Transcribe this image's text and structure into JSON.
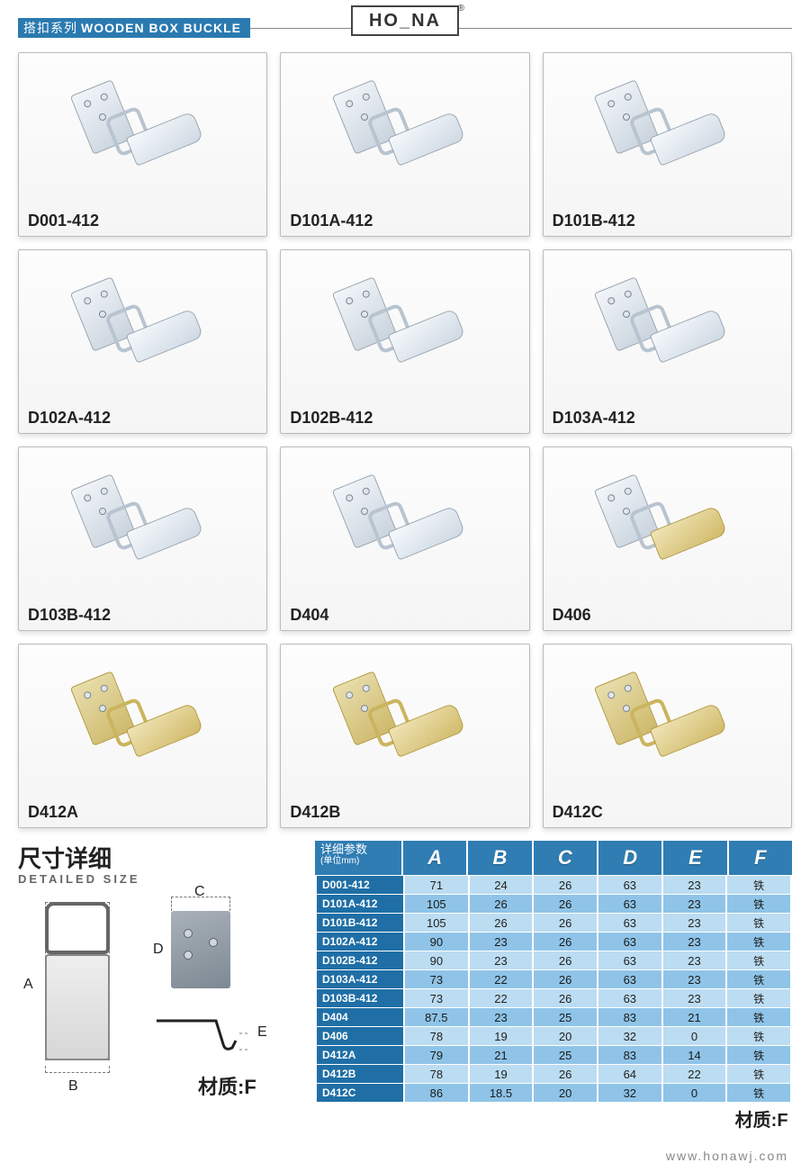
{
  "header": {
    "series_zh": "搭扣系列",
    "series_en": "WOODEN BOX BUCKLE",
    "brand": "HO_NA"
  },
  "products": [
    {
      "code": "D001-412",
      "tint": "steel"
    },
    {
      "code": "D101A-412",
      "tint": "steel"
    },
    {
      "code": "D101B-412",
      "tint": "steel"
    },
    {
      "code": "D102A-412",
      "tint": "steel"
    },
    {
      "code": "D102B-412",
      "tint": "steel"
    },
    {
      "code": "D103A-412",
      "tint": "steel"
    },
    {
      "code": "D103B-412",
      "tint": "steel"
    },
    {
      "code": "D404",
      "tint": "steel"
    },
    {
      "code": "D406",
      "tint": "mix"
    },
    {
      "code": "D412A",
      "tint": "yellow"
    },
    {
      "code": "D412B",
      "tint": "yellow"
    },
    {
      "code": "D412C",
      "tint": "yellow"
    }
  ],
  "size_section": {
    "title_zh": "尺寸详细",
    "title_en": "DETAILED SIZE",
    "labels": {
      "A": "A",
      "B": "B",
      "C": "C",
      "D": "D",
      "E": "E"
    },
    "material_label": "材质:F"
  },
  "spec_table": {
    "header_title": "详细参数",
    "header_unit": "(单位mm)",
    "columns": [
      "A",
      "B",
      "C",
      "D",
      "E",
      "F"
    ],
    "rows": [
      {
        "name": "D001-412",
        "v": [
          "71",
          "24",
          "26",
          "63",
          "23",
          "铁"
        ]
      },
      {
        "name": "D101A-412",
        "v": [
          "105",
          "26",
          "26",
          "63",
          "23",
          "铁"
        ]
      },
      {
        "name": "D101B-412",
        "v": [
          "105",
          "26",
          "26",
          "63",
          "23",
          "铁"
        ]
      },
      {
        "name": "D102A-412",
        "v": [
          "90",
          "23",
          "26",
          "63",
          "23",
          "铁"
        ]
      },
      {
        "name": "D102B-412",
        "v": [
          "90",
          "23",
          "26",
          "63",
          "23",
          "铁"
        ]
      },
      {
        "name": "D103A-412",
        "v": [
          "73",
          "22",
          "26",
          "63",
          "23",
          "铁"
        ]
      },
      {
        "name": "D103B-412",
        "v": [
          "73",
          "22",
          "26",
          "63",
          "23",
          "铁"
        ]
      },
      {
        "name": "D404",
        "v": [
          "87.5",
          "23",
          "25",
          "83",
          "21",
          "铁"
        ]
      },
      {
        "name": "D406",
        "v": [
          "78",
          "19",
          "20",
          "32",
          "0",
          "铁"
        ]
      },
      {
        "name": "D412A",
        "v": [
          "79",
          "21",
          "25",
          "83",
          "14",
          "铁"
        ]
      },
      {
        "name": "D412B",
        "v": [
          "78",
          "19",
          "26",
          "64",
          "22",
          "铁"
        ]
      },
      {
        "name": "D412C",
        "v": [
          "86",
          "18.5",
          "20",
          "32",
          "0",
          "铁"
        ]
      }
    ],
    "footer_label": "材质:F"
  },
  "footer_url": "www.honawj.com",
  "colors": {
    "header_blue": "#2a7ab0",
    "table_header": "#2f7db3",
    "rowhdr": "#1f6fa6",
    "row_light": "#bcdcf2",
    "row_dark": "#8fc4e8"
  }
}
